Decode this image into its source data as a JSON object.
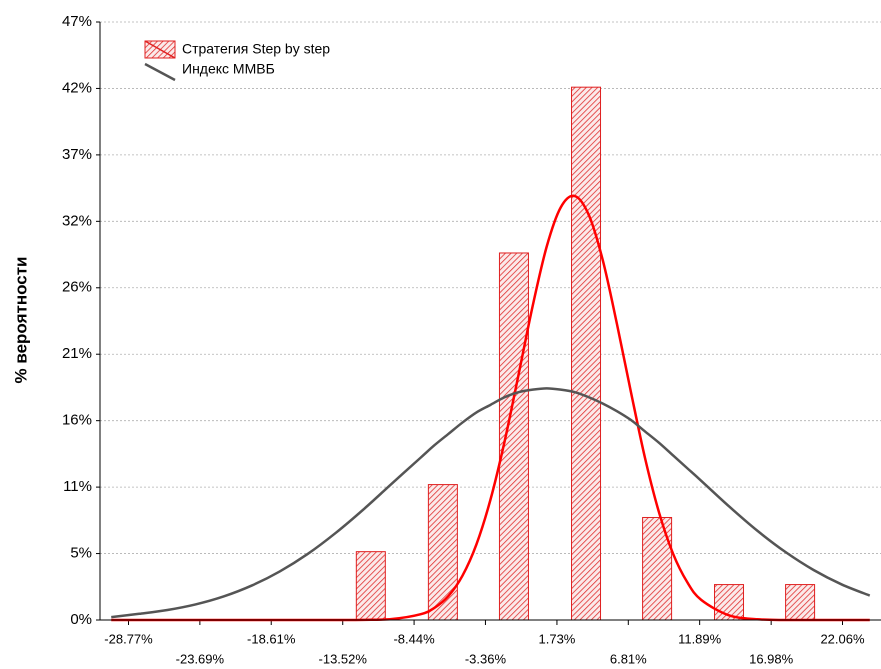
{
  "chart_data": {
    "type": "bar",
    "ylabel": "% вероятности",
    "xlim": [
      -30.8,
      24.8
    ],
    "ylim": [
      0,
      47.25
    ],
    "yticks": [
      {
        "value": 0,
        "label": "0%"
      },
      {
        "value": 5.25,
        "label": "5%"
      },
      {
        "value": 10.5,
        "label": "11%"
      },
      {
        "value": 15.75,
        "label": "16%"
      },
      {
        "value": 21,
        "label": "21%"
      },
      {
        "value": 26.25,
        "label": "26%"
      },
      {
        "value": 31.5,
        "label": "32%"
      },
      {
        "value": 36.75,
        "label": "37%"
      },
      {
        "value": 42,
        "label": "42%"
      },
      {
        "value": 47.25,
        "label": "47%"
      }
    ],
    "xticks": [
      {
        "value": -28.77,
        "label": "-28.77%"
      },
      {
        "value": -23.69,
        "label": "-23.69%"
      },
      {
        "value": -18.61,
        "label": "-18.61%"
      },
      {
        "value": -13.52,
        "label": "-13.52%"
      },
      {
        "value": -8.44,
        "label": "-8.44%"
      },
      {
        "value": -3.36,
        "label": "-3.36%"
      },
      {
        "value": 1.73,
        "label": "1.73%"
      },
      {
        "value": 6.81,
        "label": "6.81%"
      },
      {
        "value": 11.89,
        "label": "11.89%"
      },
      {
        "value": 16.98,
        "label": "16.98%"
      },
      {
        "value": 22.06,
        "label": "22.06%"
      }
    ],
    "grid": true,
    "legend": "upper left",
    "bars": {
      "name": "Стратегия Step by step",
      "color": "#e02020",
      "x": [
        -11.52,
        -6.39,
        -1.33,
        3.8,
        8.86,
        13.98,
        19.04
      ],
      "values": [
        5.4,
        10.7,
        29,
        42.1,
        8.1,
        2.8,
        2.8
      ]
    },
    "x": [
      -30,
      -28,
      -26,
      -24,
      -22,
      -20,
      -18,
      -16,
      -14,
      -12,
      -10,
      -8,
      -7,
      -6,
      -5,
      -4,
      -3,
      -2,
      -1,
      0,
      1,
      2,
      3,
      4,
      5,
      6,
      7,
      8,
      9,
      10,
      11,
      12,
      14,
      16,
      18,
      20,
      22,
      24
    ],
    "lines": [
      {
        "color": "#ff0000",
        "values": [
          0,
          0,
          0,
          0,
          0,
          0,
          0,
          0,
          0,
          0.01,
          0.08,
          0.45,
          0.95,
          1.89,
          3.49,
          5.98,
          9.52,
          14.09,
          19.4,
          24.8,
          29.5,
          32.6,
          33.5,
          32.0,
          28.4,
          23.4,
          18.0,
          12.8,
          8.49,
          5.23,
          3.0,
          1.59,
          0.36,
          0.06,
          0,
          0,
          0,
          0
        ]
      },
      {
        "name": "Индекс ММВБ",
        "color": "#555555",
        "values": [
          0.23,
          0.49,
          0.79,
          1.23,
          1.86,
          2.72,
          3.84,
          5.23,
          6.9,
          8.78,
          10.8,
          12.8,
          13.8,
          14.7,
          15.6,
          16.4,
          17.0,
          17.6,
          18.0,
          18.2,
          18.3,
          18.2,
          18.0,
          17.6,
          17.1,
          16.5,
          15.8,
          14.9,
          14.0,
          13.0,
          12.0,
          11.0,
          8.96,
          7.05,
          5.37,
          3.95,
          2.81,
          1.93
        ]
      }
    ]
  }
}
